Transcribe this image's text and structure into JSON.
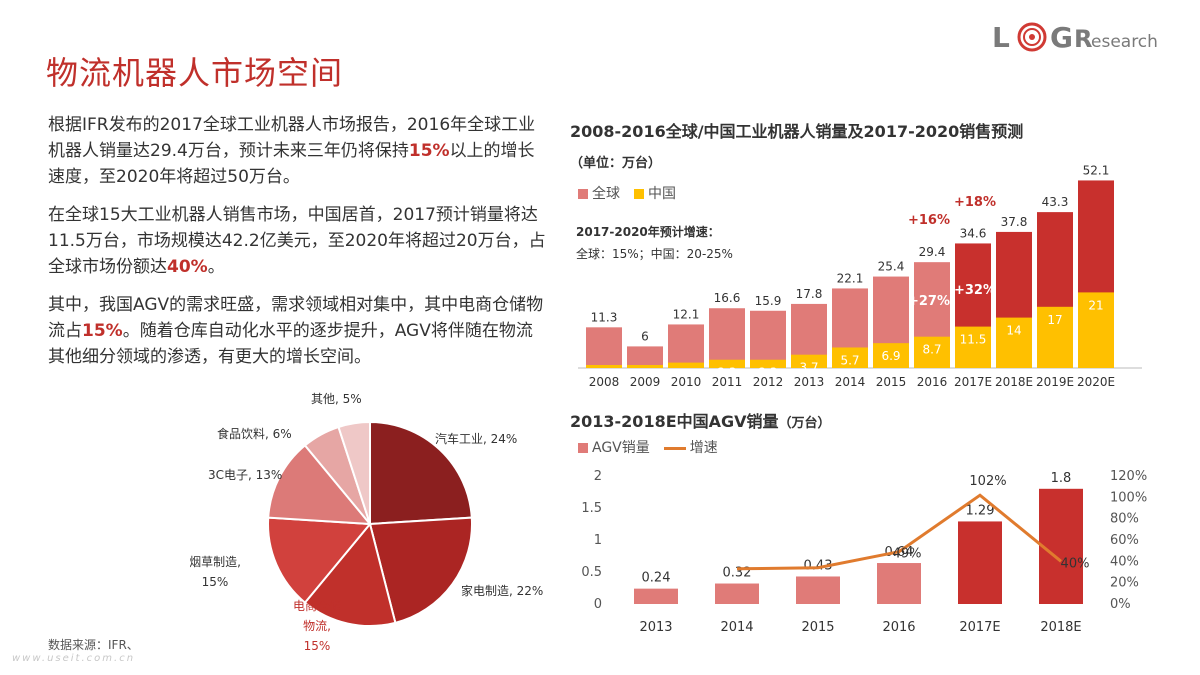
{
  "page": {
    "title": "物流机器人市场空间",
    "paragraphs": [
      {
        "pre": "根据IFR发布的2017全球工业机器人市场报告，2016年全球工业机器人销量达29.4万台，预计未来三年仍将保持",
        "bold": "15%",
        "post": "以上的增长速度，至2020年将超过50万台。"
      },
      {
        "pre": "在全球15大工业机器人销售市场，中国居首，2017预计销量将达11.5万台，市场规模达42.2亿美元，至2020年将超过20万台，占全球市场份额达",
        "bold": "40%",
        "post": "。"
      },
      {
        "pre": "其中，我国AGV的需求旺盛，需求领域相对集中，其中电商仓储物流占",
        "bold": "15%",
        "post": "。随着仓库自动化水平的逐步提升，AGV将伴随在物流其他细分领域的渗透，有更大的增长空间。"
      }
    ],
    "source": "数据来源：IFR、",
    "footer_url": "www.useit.com.cn",
    "logo": {
      "letters": [
        "L",
        "G",
        "R"
      ],
      "suffix": "esearch"
    }
  },
  "colors": {
    "accent": "#c0302b",
    "global_bar": "#e07b78",
    "global_bar_forecast": "#c8302d",
    "china_bar": "#ffc000",
    "agv_bar": "#e07b78",
    "agv_bar_forecast": "#c8302d",
    "growth_line": "#e07b2e",
    "pie": [
      "#8b2020",
      "#b32a28",
      "#c83c38",
      "#d97a78",
      "#e6a8a6",
      "#f0cccb"
    ]
  },
  "chart_data": [
    {
      "type": "bar",
      "title": "2008-2016全球/中国工业机器人销量及2017-2020销售预测",
      "title_unit": "（单位：万台）",
      "categories": [
        "2008",
        "2009",
        "2010",
        "2011",
        "2012",
        "2013",
        "2014",
        "2015",
        "2016",
        "2017E",
        "2018E",
        "2019E",
        "2020E"
      ],
      "series": [
        {
          "name": "全球",
          "values": [
            11.3,
            6,
            12.1,
            16.6,
            15.9,
            17.8,
            22.1,
            25.4,
            29.4,
            34.6,
            37.8,
            43.3,
            52.1
          ]
        },
        {
          "name": "中国",
          "values": [
            null,
            null,
            1.5,
            2.3,
            2.3,
            3.7,
            5.7,
            6.9,
            8.7,
            11.5,
            14,
            17,
            21
          ]
        }
      ],
      "annotations": [
        {
          "text": "+16%",
          "category": "2016"
        },
        {
          "text": "+18%",
          "category": "2017E"
        },
        {
          "text": "+27%",
          "category": "2016"
        },
        {
          "text": "+32%",
          "category": "2017E"
        }
      ],
      "note_title": "2017-2020年预计增速：",
      "note_text": "全球：15%；中国：20-25%",
      "ylim": [
        0,
        55
      ]
    },
    {
      "type": "bar",
      "title": "2013-2018E中国AGV销量",
      "title_unit": "（万台）",
      "categories": [
        "2013",
        "2014",
        "2015",
        "2016",
        "2017E",
        "2018E"
      ],
      "series": [
        {
          "name": "AGV销量",
          "type": "bar",
          "values": [
            0.24,
            0.32,
            0.43,
            0.64,
            1.29,
            1.8
          ]
        },
        {
          "name": "增速",
          "type": "line",
          "values": [
            null,
            33,
            34,
            49,
            102,
            40
          ],
          "labels": [
            "",
            "",
            "",
            "49%",
            "102%",
            "40%"
          ]
        }
      ],
      "y_left": {
        "ticks": [
          "0",
          "0.5",
          "1",
          "1.5",
          "2"
        ],
        "range": [
          0,
          2
        ]
      },
      "y_right": {
        "ticks": [
          "0%",
          "20%",
          "40%",
          "60%",
          "80%",
          "100%",
          "120%"
        ],
        "range": [
          0,
          120
        ]
      }
    },
    {
      "type": "pie",
      "slices": [
        {
          "label": "汽车工业",
          "value": 24,
          "text": "汽车工业, 24%"
        },
        {
          "label": "家电制造",
          "value": 22,
          "text": "家电制造, 22%"
        },
        {
          "label": "电商仓储物流",
          "value": 15,
          "text_lines": [
            "电商仓储",
            "物流,",
            "15%"
          ]
        },
        {
          "label": "烟草制造",
          "value": 15,
          "text_lines": [
            "烟草制造,",
            "15%"
          ]
        },
        {
          "label": "3C电子",
          "value": 13,
          "text": "3C电子, 13%"
        },
        {
          "label": "食品饮料",
          "value": 6,
          "text": "食品饮料, 6%"
        },
        {
          "label": "其他",
          "value": 5,
          "text": "其他, 5%"
        }
      ]
    }
  ]
}
